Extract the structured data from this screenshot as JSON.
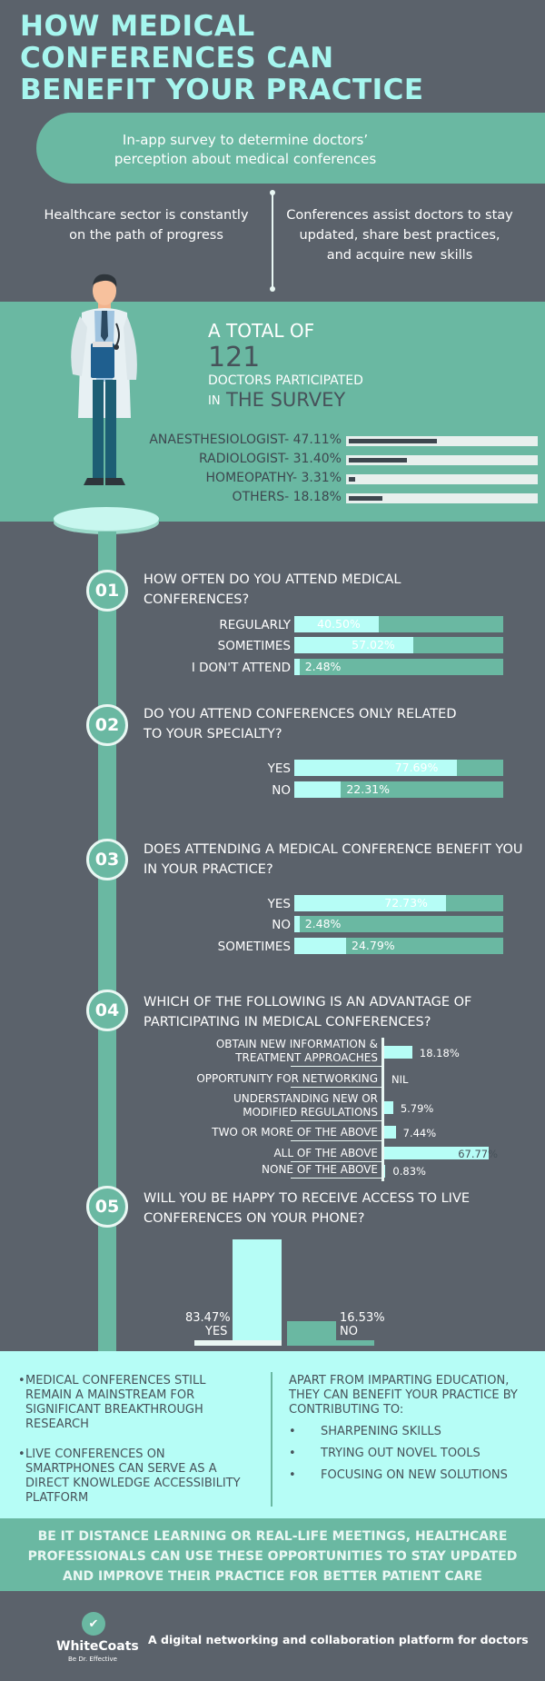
{
  "header": {
    "title_line1": "HOW MEDICAL",
    "title_line2": "CONFERENCES CAN",
    "title_line3": "BENEFIT YOUR PRACTICE",
    "survey_line1": "In-app survey to determine doctors’",
    "survey_line2": "perception about medical conferences",
    "left_fact_line1": "Healthcare sector is constantly",
    "left_fact_line2": "on the path of progress",
    "right_fact_line1": "Conferences assist doctors to stay",
    "right_fact_line2": "updated, share best practices,",
    "right_fact_line3": "and acquire new skills"
  },
  "participants": {
    "line1": "A TOTAL OF",
    "count": "121",
    "line3": "DOCTORS PARTICIPATED",
    "line4a": "IN",
    "line4b": "THE SURVEY",
    "specialties": [
      {
        "label": "ANAESTHESIOLOGIST- 47.11%",
        "value": 47.11
      },
      {
        "label": "RADIOLOGIST- 31.40%",
        "value": 31.4
      },
      {
        "label": "HOMEOPATHY- 3.31%",
        "value": 3.31
      },
      {
        "label": "OTHERS- 18.18%",
        "value": 18.18
      }
    ]
  },
  "questions": [
    {
      "number": "01",
      "line1": "HOW OFTEN DO YOU ATTEND MEDICAL",
      "line2": "CONFERENCES?",
      "options": [
        {
          "label": "REGULARLY",
          "value": 40.5,
          "text": "40.50%"
        },
        {
          "label": "SOMETIMES",
          "value": 57.02,
          "text": "57.02%"
        },
        {
          "label": "I DON'T ATTEND",
          "value": 2.48,
          "text": "2.48%"
        }
      ]
    },
    {
      "number": "02",
      "line1": "DO YOU ATTEND CONFERENCES ONLY RELATED",
      "line2": "TO YOUR SPECIALTY?",
      "options": [
        {
          "label": "YES",
          "value": 77.69,
          "text": "77.69%"
        },
        {
          "label": "NO",
          "value": 22.31,
          "text": "22.31%"
        }
      ]
    },
    {
      "number": "03",
      "line1": "DOES ATTENDING A MEDICAL CONFERENCE BENEFIT YOU",
      "line2": "IN YOUR PRACTICE?",
      "options": [
        {
          "label": "YES",
          "value": 72.73,
          "text": "72.73%"
        },
        {
          "label": "NO",
          "value": 2.48,
          "text": "2.48%"
        },
        {
          "label": "SOMETIMES",
          "value": 24.79,
          "text": "24.79%"
        }
      ]
    },
    {
      "number": "04",
      "line1": "WHICH OF THE FOLLOWING IS AN ADVANTAGE OF",
      "line2": "PARTICIPATING IN MEDICAL CONFERENCES?",
      "options": [
        {
          "label1": "OBTAIN NEW INFORMATION &",
          "label2": "TREATMENT APPROACHES",
          "value": 18.18,
          "text": "18.18%"
        },
        {
          "label1": "OPPORTUNITY FOR NETWORKING",
          "label2": "",
          "value": 0,
          "text": "NIL"
        },
        {
          "label1": "UNDERSTANDING NEW OR",
          "label2": "MODIFIED REGULATIONS",
          "value": 5.79,
          "text": "5.79%"
        },
        {
          "label1": "TWO OR MORE OF THE ABOVE",
          "label2": "",
          "value": 7.44,
          "text": "7.44%"
        },
        {
          "label1": "ALL OF THE ABOVE",
          "label2": "",
          "value": 67.77,
          "text": "67.77%"
        },
        {
          "label1": "NONE OF THE ABOVE",
          "label2": "",
          "value": 0.83,
          "text": "0.83%"
        }
      ]
    },
    {
      "number": "05",
      "line1": "WILL YOU BE HAPPY TO RECEIVE ACCESS TO LIVE",
      "line2": "CONFERENCES ON YOUR PHONE?",
      "options": [
        {
          "label": "YES",
          "value": 83.47,
          "text": "83.47%"
        },
        {
          "label": "NO",
          "value": 16.53,
          "text": "16.53%"
        }
      ]
    }
  ],
  "conclusions": {
    "left_items": [
      [
        "MEDICAL CONFERENCES STILL",
        "REMAIN A MAINSTREAM FOR",
        "SIGNIFICANT BREAKTHROUGH",
        "RESEARCH"
      ],
      [
        "LIVE CONFERENCES ON",
        "SMARTPHONES CAN SERVE AS A",
        "DIRECT KNOWLEDGE ACCESSIBILITY",
        "PLATFORM"
      ]
    ],
    "right_intro": [
      "APART FROM IMPARTING EDUCATION,",
      "THEY CAN BENEFIT YOUR PRACTICE BY",
      "CONTRIBUTING TO:"
    ],
    "right_items": [
      "SHARPENING SKILLS",
      "TRYING OUT NOVEL TOOLS",
      "FOCUSING ON NEW SOLUTIONS"
    ],
    "bullet": "•"
  },
  "footer": {
    "line1": "BE IT DISTANCE LEARNING OR REAL-LIFE MEETINGS, HEALTHCARE",
    "line2": "PROFESSIONALS CAN USE THESE OPPORTUNITIES TO STAY UPDATED",
    "line3": "AND IMPROVE THEIR PRACTICE FOR BETTER PATIENT CARE",
    "logo_name": "WhiteCoats",
    "logo_tagline": "Be Dr. Effective",
    "platform_text": "A digital networking and collaboration platform for doctors"
  },
  "colors": {
    "background": "#5b626b",
    "teal": "#6ab8a2",
    "mint": "#b6fdf6",
    "title": "#a6f6ef",
    "dark_text": "#3d474f"
  },
  "icons": [
    "doctor-illustration",
    "whitecoats-logo-icon"
  ]
}
